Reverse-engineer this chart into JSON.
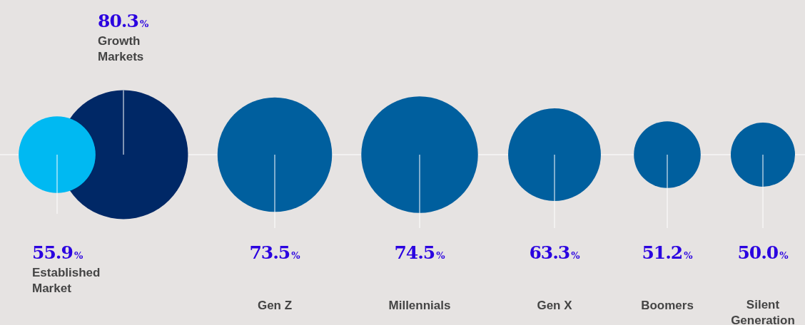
{
  "chart_data": {
    "type": "other",
    "categories": [
      "Growth Markets",
      "Established Market",
      "Gen Z",
      "Millennials",
      "Gen X",
      "Boomers",
      "Silent Generation"
    ],
    "values": [
      80.3,
      55.9,
      73.5,
      74.5,
      63.3,
      51.2,
      50.0
    ],
    "value_labels": [
      "80.3%",
      "55.9%",
      "73.5%",
      "74.5%",
      "63.3%",
      "51.2%",
      "50.0%"
    ],
    "colors": [
      "#002866",
      "#00b9f2",
      "#005f9e",
      "#005f9e",
      "#005f9e",
      "#005f9e",
      "#005f9e"
    ]
  }
}
